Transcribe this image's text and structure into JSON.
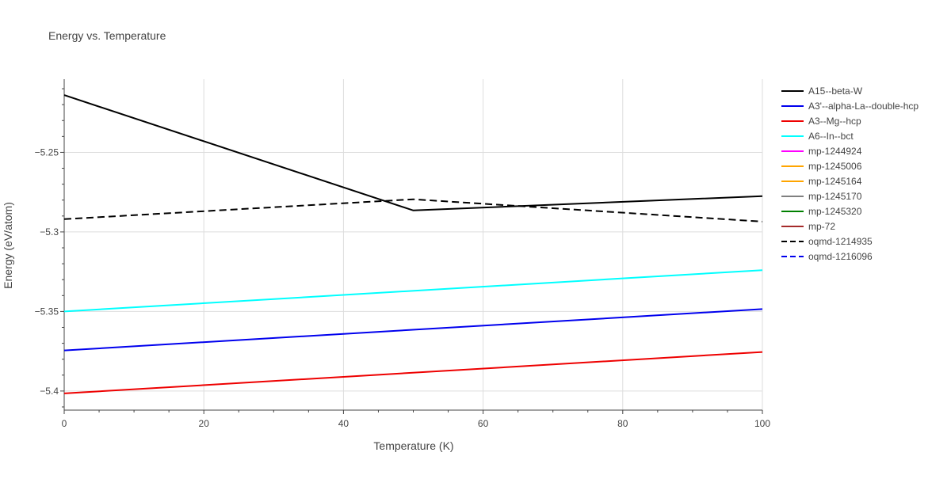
{
  "chart_data": {
    "type": "line",
    "title": "Energy vs. Temperature",
    "xlabel": "Temperature (K)",
    "ylabel": "Energy (eV/atom)",
    "xlim": [
      0,
      100
    ],
    "ylim": [
      -5.412,
      -5.204
    ],
    "x_ticks": [
      0,
      20,
      40,
      60,
      80,
      100
    ],
    "x_tick_labels": [
      "0",
      "20",
      "40",
      "60",
      "80",
      "100"
    ],
    "y_ticks": [
      -5.25,
      -5.3,
      -5.35,
      -5.4
    ],
    "y_tick_labels": [
      "−5.25",
      "−5.3",
      "−5.35",
      "−5.4"
    ],
    "grid": true,
    "legend_position": "right",
    "series": [
      {
        "name": "A15--beta-W",
        "color": "#000000",
        "dash": "solid",
        "x": [
          0,
          50,
          100
        ],
        "y": [
          -5.214,
          -5.2865,
          -5.2775
        ]
      },
      {
        "name": "A3'--alpha-La--double-hcp",
        "color": "#0000ee",
        "dash": "solid",
        "x": [
          0,
          100
        ],
        "y": [
          -5.3745,
          -5.3485
        ]
      },
      {
        "name": "A3--Mg--hcp",
        "color": "#ee0000",
        "dash": "solid",
        "x": [
          0,
          100
        ],
        "y": [
          -5.4015,
          -5.3755
        ]
      },
      {
        "name": "A6--In--bct",
        "color": "#00ffff",
        "dash": "solid",
        "x": [
          0,
          100
        ],
        "y": [
          -5.35,
          -5.324
        ]
      },
      {
        "name": "mp-1244924",
        "color": "#ff00ff",
        "dash": "solid",
        "x": [],
        "y": []
      },
      {
        "name": "mp-1245006",
        "color": "#ffa500",
        "dash": "solid",
        "x": [],
        "y": []
      },
      {
        "name": "mp-1245164",
        "color": "#ffa500",
        "dash": "solid",
        "x": [],
        "y": []
      },
      {
        "name": "mp-1245170",
        "color": "#808080",
        "dash": "solid",
        "x": [],
        "y": []
      },
      {
        "name": "mp-1245320",
        "color": "#008000",
        "dash": "solid",
        "x": [],
        "y": []
      },
      {
        "name": "mp-72",
        "color": "#a52a2a",
        "dash": "solid",
        "x": [],
        "y": []
      },
      {
        "name": "oqmd-1214935",
        "color": "#000000",
        "dash": "dash",
        "x": [
          0,
          50,
          100
        ],
        "y": [
          -5.292,
          -5.2795,
          -5.2935
        ]
      },
      {
        "name": "oqmd-1216096",
        "color": "#0000ee",
        "dash": "dash",
        "x": [],
        "y": []
      }
    ]
  }
}
